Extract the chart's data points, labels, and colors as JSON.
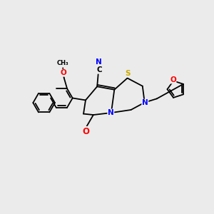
{
  "bg_color": "#ebebeb",
  "bond_color": "#000000",
  "atom_colors": {
    "N": "#0000ff",
    "O": "#ff0000",
    "S": "#ccaa00",
    "C": "#000000"
  },
  "line_width": 1.3,
  "font_size": 7.5
}
